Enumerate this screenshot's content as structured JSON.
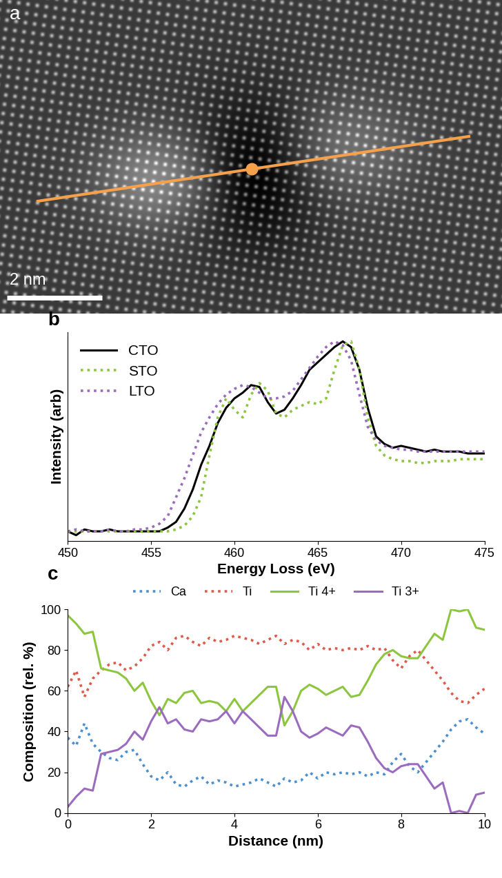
{
  "chart_data": [
    {
      "type": "image",
      "panel_label": "a",
      "scale_bar_label": "2 nm"
    },
    {
      "type": "line",
      "panel_label": "b",
      "x_label": "Energy Loss (eV)",
      "y_label": "Intensity (arb)",
      "x": [
        450,
        450.5,
        451,
        451.5,
        452,
        452.5,
        453,
        453.5,
        454,
        454.5,
        455,
        455.5,
        456,
        456.5,
        457,
        457.5,
        458,
        458.5,
        459,
        459.5,
        460,
        460.5,
        461,
        461.5,
        462,
        462.5,
        463,
        463.5,
        464,
        464.5,
        465,
        465.5,
        466,
        466.5,
        467,
        467.5,
        468,
        468.5,
        469,
        469.5,
        470,
        470.5,
        471,
        471.5,
        472,
        472.5,
        473,
        473.5,
        474,
        474.5,
        475
      ],
      "series": [
        {
          "name": "CTO",
          "color": "#000000",
          "line_style": "solid",
          "values": [
            0,
            -2,
            1,
            0,
            0,
            1,
            0,
            0,
            0,
            0,
            0,
            0,
            2,
            5,
            12,
            22,
            35,
            45,
            57,
            65,
            70,
            73,
            77,
            76,
            68,
            62,
            64,
            70,
            77,
            85,
            89,
            93,
            97,
            100,
            97,
            85,
            65,
            50,
            46,
            44,
            45,
            44,
            43,
            42,
            43,
            42,
            42,
            42,
            41,
            41,
            41
          ]
        },
        {
          "name": "STO",
          "color": "#8cc63f",
          "line_style": "dotted",
          "values": [
            0,
            0,
            0,
            0,
            0,
            0,
            0,
            0,
            0,
            0,
            0,
            0,
            0,
            1,
            3,
            8,
            18,
            40,
            60,
            70,
            64,
            60,
            72,
            78,
            74,
            62,
            60,
            64,
            66,
            68,
            67,
            70,
            85,
            98,
            100,
            85,
            60,
            45,
            40,
            38,
            37,
            37,
            36,
            36,
            37,
            37,
            37,
            38,
            38,
            38,
            38
          ]
        },
        {
          "name": "LTO",
          "color": "#9b6bbd",
          "line_style": "dotted",
          "values": [
            0,
            1,
            0,
            0,
            0,
            1,
            0,
            0,
            1,
            1,
            2,
            4,
            8,
            18,
            28,
            40,
            52,
            60,
            67,
            72,
            75,
            77,
            76,
            73,
            70,
            70,
            71,
            74,
            80,
            86,
            92,
            97,
            100,
            98,
            90,
            72,
            55,
            48,
            45,
            44,
            43,
            43,
            42,
            42,
            42,
            42,
            42,
            42,
            42,
            42,
            42
          ]
        }
      ],
      "xlim": [
        450,
        475
      ],
      "xticks": [
        450,
        455,
        460,
        465,
        470,
        475
      ],
      "ylim": [
        -5,
        105
      ],
      "yticks": [],
      "tick_labels": "x",
      "legend": "upper left"
    },
    {
      "type": "line",
      "panel_label": "c",
      "x_label": "Distance (nm)",
      "y_label": "Composition (rel. %)",
      "x": [
        0,
        0.2,
        0.4,
        0.6,
        0.8,
        1.0,
        1.2,
        1.4,
        1.6,
        1.8,
        2.0,
        2.2,
        2.4,
        2.6,
        2.8,
        3.0,
        3.2,
        3.4,
        3.6,
        3.8,
        4.0,
        4.2,
        4.4,
        4.6,
        4.8,
        5.0,
        5.2,
        5.4,
        5.6,
        5.8,
        6.0,
        6.2,
        6.4,
        6.6,
        6.8,
        7.0,
        7.2,
        7.4,
        7.6,
        7.8,
        8.0,
        8.2,
        8.4,
        8.6,
        8.8,
        9.0,
        9.2,
        9.4,
        9.6,
        9.8,
        10.0
      ],
      "series": [
        {
          "name": "Ca",
          "color": "#4a90d0",
          "line_style": "dotted",
          "values": [
            37,
            33,
            44,
            34,
            30,
            27,
            26,
            30,
            31,
            24,
            18,
            16,
            20,
            14,
            13,
            16,
            18,
            14,
            16,
            15,
            13,
            14,
            15,
            17,
            15,
            13,
            17,
            15,
            16,
            20,
            17,
            20,
            19,
            20,
            19,
            20,
            18,
            20,
            19,
            25,
            29,
            23,
            20,
            25,
            30,
            35,
            41,
            45,
            46,
            42,
            39
          ]
        },
        {
          "name": "Ti",
          "color": "#e05a4a",
          "line_style": "dotted",
          "values": [
            62,
            70,
            57,
            66,
            70,
            73,
            74,
            70,
            72,
            76,
            82,
            84,
            80,
            86,
            87,
            84,
            82,
            86,
            84,
            85,
            87,
            86,
            85,
            83,
            85,
            87,
            83,
            85,
            84,
            80,
            83,
            80,
            81,
            80,
            81,
            80,
            82,
            80,
            81,
            75,
            71,
            77,
            80,
            75,
            70,
            65,
            59,
            55,
            54,
            58,
            61
          ]
        },
        {
          "name": "Ti 4+",
          "color": "#8cc63f",
          "line_style": "solid",
          "values": [
            97,
            93,
            88,
            89,
            71,
            70,
            69,
            66,
            60,
            64,
            55,
            48,
            56,
            54,
            59,
            60,
            54,
            55,
            54,
            50,
            56,
            50,
            54,
            58,
            62,
            62,
            43,
            50,
            60,
            63,
            61,
            58,
            60,
            62,
            57,
            58,
            65,
            73,
            78,
            80,
            77,
            76,
            76,
            82,
            88,
            85,
            100,
            99,
            100,
            91,
            90
          ]
        },
        {
          "name": "Ti 3+",
          "color": "#9b6bbd",
          "line_style": "solid",
          "values": [
            3,
            8,
            12,
            11,
            29,
            30,
            31,
            34,
            40,
            36,
            45,
            52,
            44,
            46,
            41,
            40,
            46,
            45,
            46,
            50,
            44,
            50,
            46,
            42,
            38,
            38,
            57,
            50,
            40,
            37,
            39,
            42,
            40,
            38,
            43,
            42,
            35,
            27,
            22,
            20,
            23,
            24,
            24,
            18,
            12,
            15,
            0,
            1,
            0,
            9,
            10
          ]
        }
      ],
      "xlim": [
        0,
        10
      ],
      "xticks": [
        0,
        2,
        4,
        6,
        8,
        10
      ],
      "ylim": [
        0,
        100
      ],
      "yticks": [
        0,
        20,
        40,
        60,
        80,
        100
      ],
      "legend": "top"
    }
  ]
}
